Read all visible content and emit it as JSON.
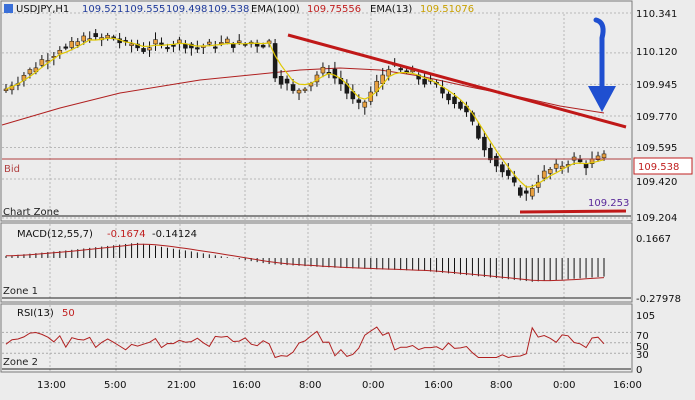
{
  "header": {
    "symbol": "USDJPY,H1",
    "open": "109.521",
    "high": "109.555",
    "low": "109.498",
    "close": "109.538",
    "ema100_label": "EMA(100)",
    "ema100_value": "109.75556",
    "ema13_label": "EMA(13)",
    "ema13_value": "109.51076"
  },
  "labels": {
    "bid": "Bid",
    "bid_price": "109.538",
    "chart_zone": "Chart Zone",
    "zone1": "Zone 1",
    "zone2": "Zone 2",
    "support_value": "109.253"
  },
  "colors": {
    "background": "#ececec",
    "bull_candle": "#e8a040",
    "bear_candle": "#1a1a1a",
    "ema100": "#b02020",
    "ema13": "#e0c800",
    "trendline": "#c01818",
    "arrow": "#1f4fd0",
    "bid_line": "#b04040",
    "macd_hist": "#111111",
    "macd_signal": "#b02020",
    "rsi": "#b02020",
    "value_blue": "#1f3a9a",
    "value_red": "#c02020",
    "value_yellow": "#c8a000",
    "value_purple": "#5a2a9a"
  },
  "macd": {
    "label": "MACD(12,55,7)",
    "value1": "-0.1674",
    "value2": "-0.14124",
    "scale_max": "0.1667",
    "scale_min": "-0.27978"
  },
  "rsi": {
    "label": "RSI(13)",
    "value": "50",
    "levels": [
      "105",
      "70",
      "50",
      "30",
      "0"
    ]
  },
  "chart_data": {
    "type": "candlestick",
    "title": "USDJPY,H1",
    "price_axis": {
      "ticks": [
        "110.341",
        "110.120",
        "109.945",
        "109.770",
        "109.595",
        "109.420",
        "109.204"
      ],
      "ylim": [
        109.204,
        110.341
      ]
    },
    "time_axis": {
      "ticks": [
        "13:00",
        "5:00",
        "21:00",
        "16:00",
        "8:00",
        "0:00",
        "16:00",
        "8:00",
        "0:00",
        "16:00"
      ]
    },
    "series": [
      {
        "name": "EMA(100)",
        "last": 109.75556
      },
      {
        "name": "EMA(13)",
        "last": 109.51076
      }
    ],
    "annotations": {
      "bid": 109.538,
      "support_level": 109.253,
      "trendline": {
        "from": 110.22,
        "to": 109.77
      },
      "arrow": "down"
    },
    "macd": {
      "ylim": [
        -0.27978,
        0.1667
      ],
      "last": [
        -0.1674,
        -0.14124
      ]
    },
    "rsi": {
      "ylim": [
        0,
        105
      ],
      "levels": [
        70,
        50,
        30
      ],
      "last": 50
    },
    "close_path": [
      109.92,
      109.95,
      109.97,
      110.0,
      110.02,
      110.05,
      110.08,
      110.1,
      110.12,
      110.15,
      110.14,
      110.16,
      110.18,
      110.2,
      110.22,
      110.19,
      110.2,
      110.21,
      110.2,
      110.18,
      110.16,
      110.17,
      110.15,
      110.14,
      110.16,
      110.17,
      110.16,
      110.17,
      110.17,
      110.18,
      110.17,
      110.15,
      110.15,
      110.16,
      110.16,
      110.17,
      110.17,
      110.18,
      110.17,
      110.17,
      110.17,
      110.18,
      110.17,
      110.17,
      110.18,
      110.0,
      109.97,
      109.94,
      109.9,
      109.92,
      109.94,
      109.96,
      110.0,
      110.02,
      110.03,
      109.98,
      109.95,
      109.9,
      109.85,
      109.82,
      109.85,
      109.9,
      109.95,
      110.0,
      110.05,
      110.03,
      110.02,
      110.01,
      110.0,
      109.98,
      109.96,
      109.95,
      109.93,
      109.9,
      109.88,
      109.85,
      109.82,
      109.78,
      109.72,
      109.66,
      109.6,
      109.55,
      109.5,
      109.46,
      109.42,
      109.38,
      109.35,
      109.33,
      109.38,
      109.42,
      109.45,
      109.47,
      109.48,
      109.5,
      109.52,
      109.53,
      109.51,
      109.5,
      109.52,
      109.53,
      109.54
    ]
  }
}
